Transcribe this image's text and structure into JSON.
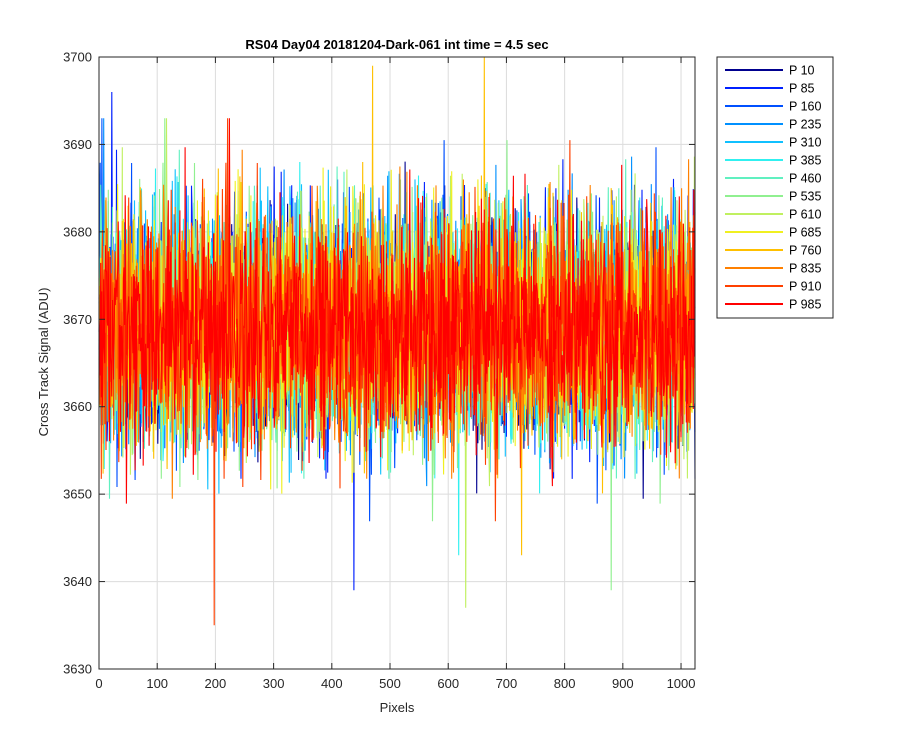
{
  "chart_data": {
    "type": "line",
    "title": "RS04 Day04 20181204-Dark-061 int time = 4.5 sec",
    "xlabel": "Pixels",
    "ylabel": "Cross Track Signal (ADU)",
    "xlim": [
      0,
      1024
    ],
    "ylim": [
      3630,
      3700
    ],
    "xticks": [
      0,
      100,
      200,
      300,
      400,
      500,
      600,
      700,
      800,
      900,
      1000
    ],
    "yticks": [
      3630,
      3640,
      3650,
      3660,
      3670,
      3680,
      3690,
      3700
    ],
    "grid": true,
    "legend_position": "outside-right",
    "series_mean": 3669,
    "series_noise_sd": 6.5,
    "series_extremes": [
      {
        "series": "P 85",
        "x": 22,
        "y": 3696
      },
      {
        "series": "P 910",
        "x": 198,
        "y": 3635
      },
      {
        "series": "P 85",
        "x": 438,
        "y": 3639
      },
      {
        "series": "P 760",
        "x": 470,
        "y": 3699
      },
      {
        "series": "P 610",
        "x": 630,
        "y": 3637
      },
      {
        "series": "P 760",
        "x": 662,
        "y": 3700
      },
      {
        "series": "P 535",
        "x": 880,
        "y": 3639
      }
    ],
    "series": [
      {
        "name": "P 10",
        "color": "#00008f"
      },
      {
        "name": "P 85",
        "color": "#0020ff"
      },
      {
        "name": "P 160",
        "color": "#0050ff"
      },
      {
        "name": "P 235",
        "color": "#0090ff"
      },
      {
        "name": "P 310",
        "color": "#10c0ff"
      },
      {
        "name": "P 385",
        "color": "#30f0f0"
      },
      {
        "name": "P 460",
        "color": "#60f0c0"
      },
      {
        "name": "P 535",
        "color": "#90f090"
      },
      {
        "name": "P 610",
        "color": "#c0f060"
      },
      {
        "name": "P 685",
        "color": "#f0f020"
      },
      {
        "name": "P 760",
        "color": "#ffc000"
      },
      {
        "name": "P 835",
        "color": "#ff8000"
      },
      {
        "name": "P 910",
        "color": "#ff4000"
      },
      {
        "name": "P 985",
        "color": "#ff0000"
      }
    ]
  }
}
